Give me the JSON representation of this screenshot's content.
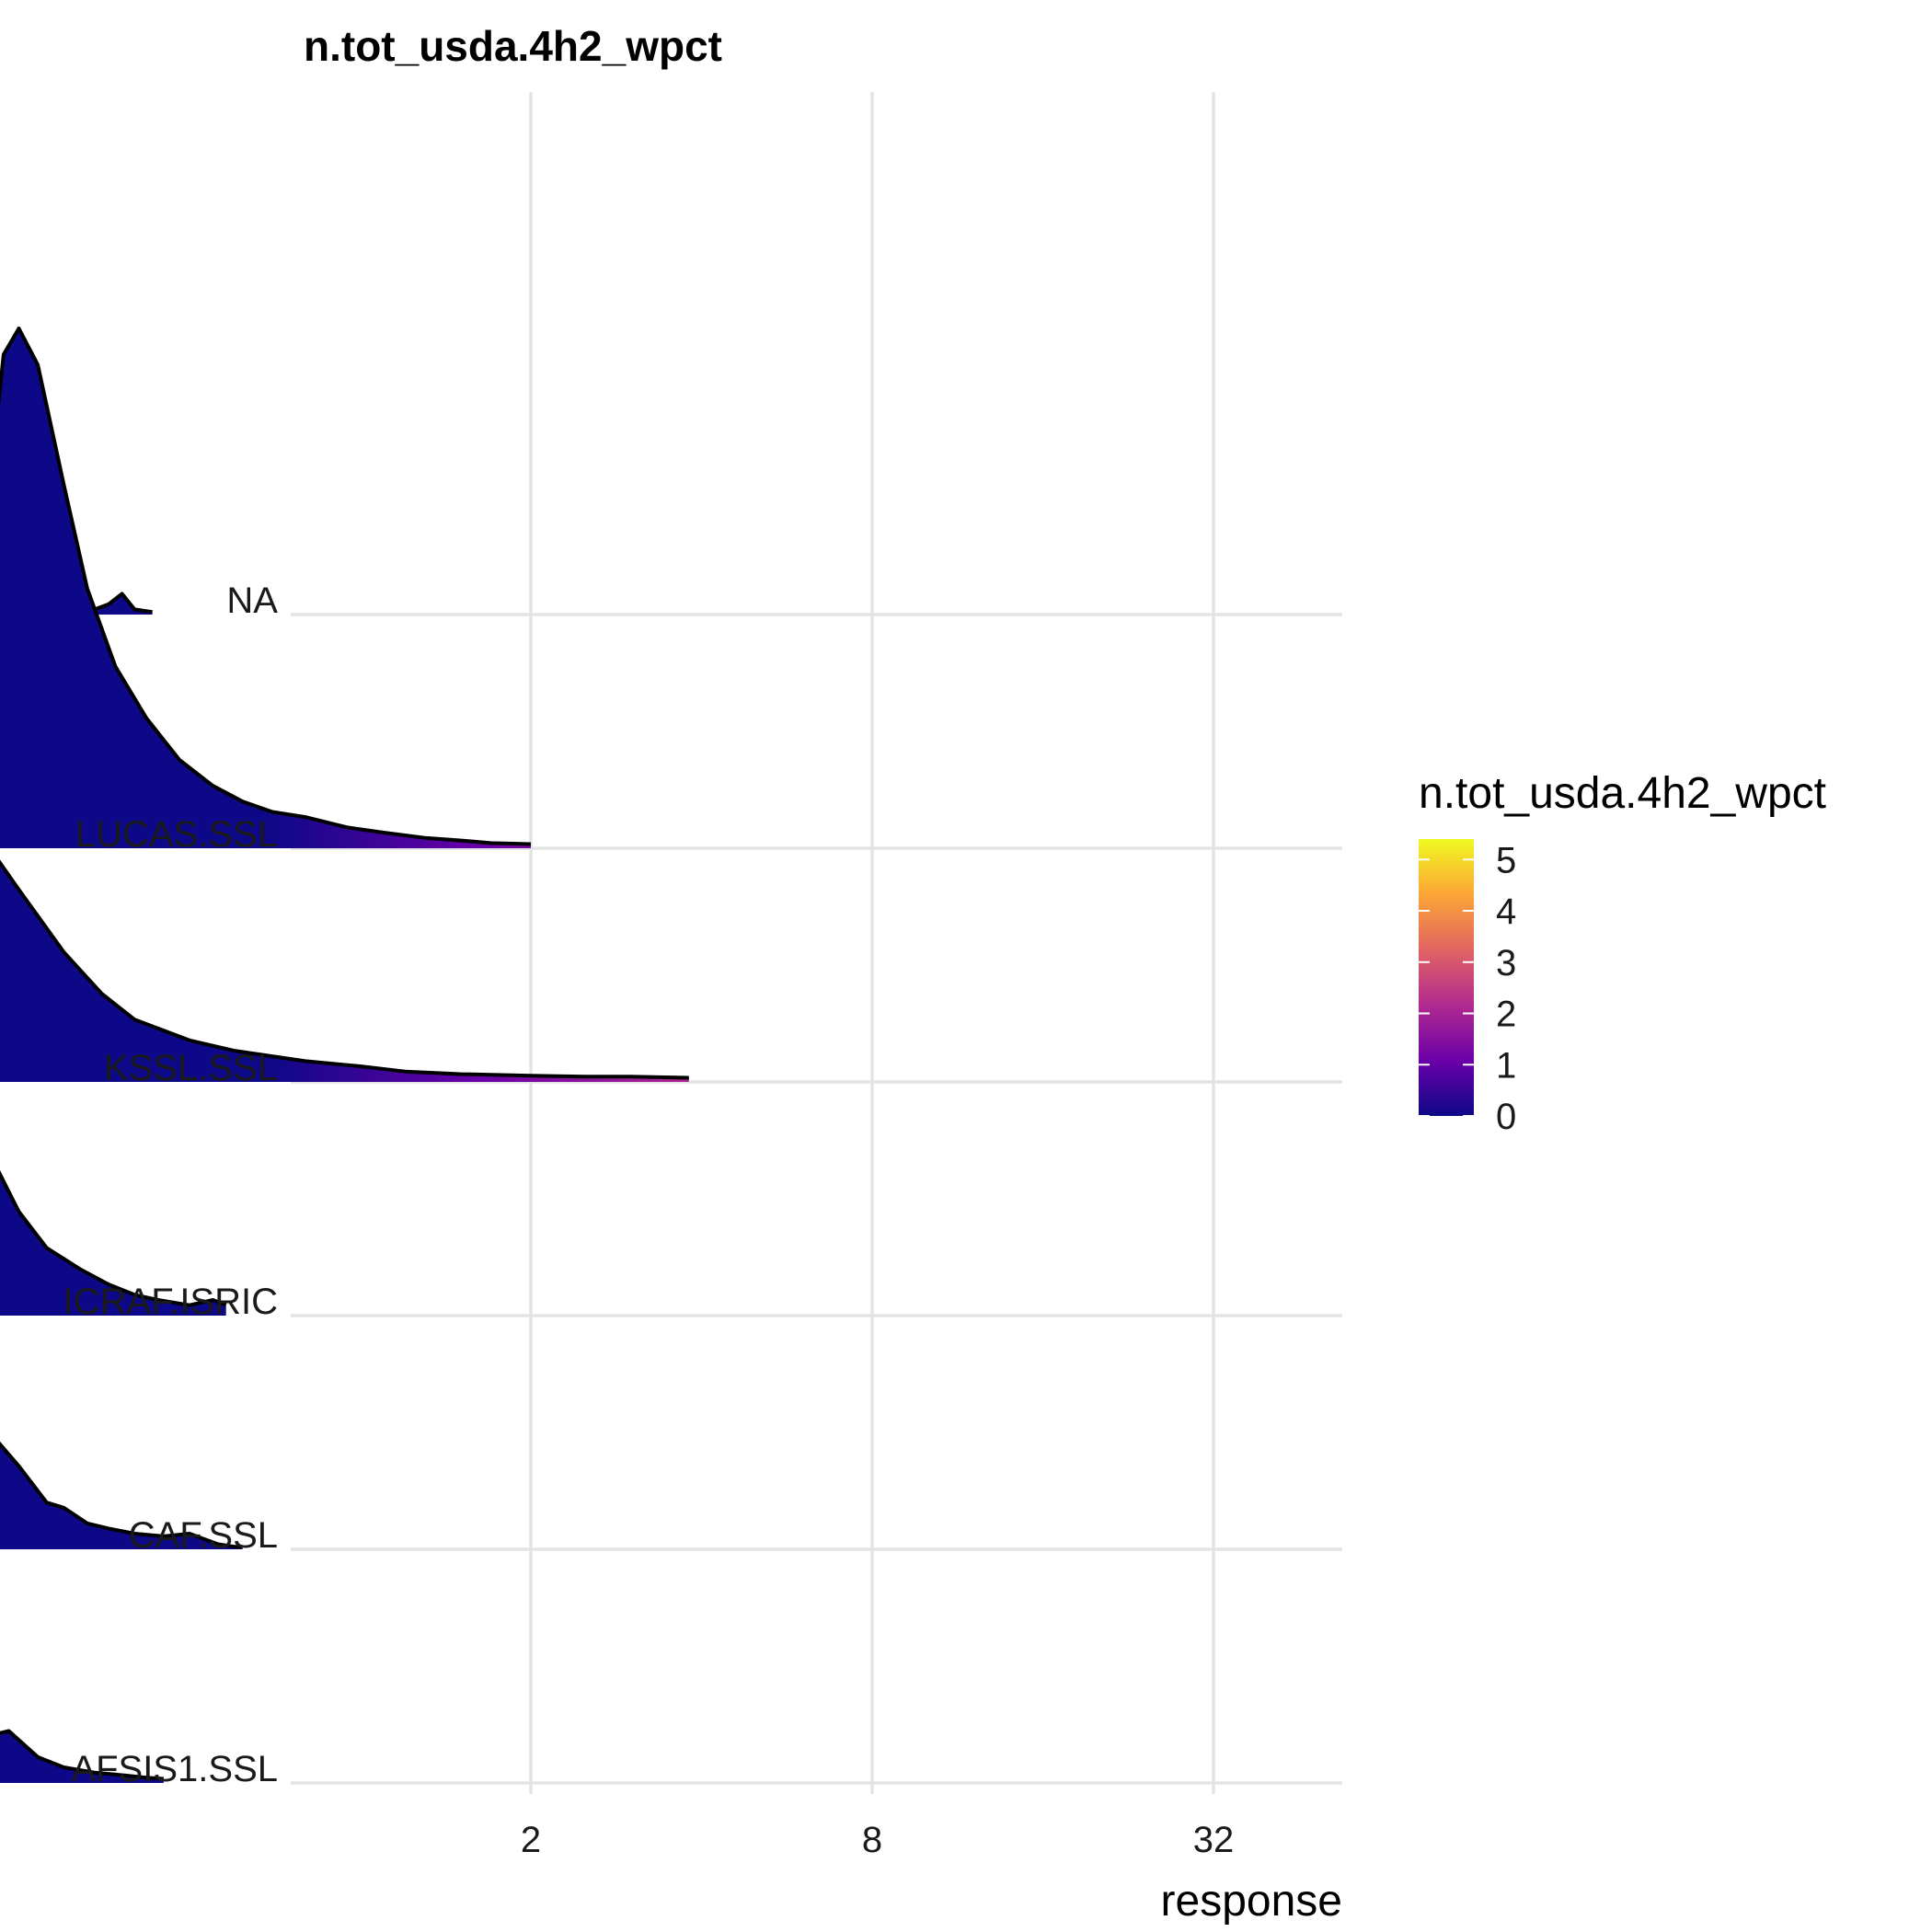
{
  "chart_data": {
    "type": "ridgeline",
    "title": "n.tot_usda.4h2_wpct",
    "xlabel": "response",
    "ylabel": "",
    "x_scale": "log2",
    "xlim": [
      0.07,
      64
    ],
    "x_ticks": [
      2,
      8,
      32
    ],
    "categories": [
      "AFSIS1.SSL",
      "CAF.SSL",
      "ICRAF.ISRIC",
      "KSSL.SSL",
      "LUCAS.SSL",
      "NA"
    ],
    "grid": true,
    "legend": {
      "title": "n.tot_usda.4h2_wpct",
      "position": "right",
      "scale": "plasma",
      "min": 0,
      "max": 5.4,
      "ticks": [
        0,
        1,
        2,
        3,
        4,
        5
      ],
      "colors": [
        "#0d0887",
        "#6a00a8",
        "#b12a90",
        "#e16462",
        "#fca636",
        "#f0f921"
      ]
    },
    "series": [
      {
        "name": "AFSIS1.SSL",
        "x": [
          0.1,
          0.105,
          0.11,
          0.118,
          0.125,
          0.135,
          0.15,
          0.17,
          0.19,
          0.21,
          0.22,
          0.24,
          0.27,
          0.3,
          0.34,
          0.38,
          0.42,
          0.45
        ],
        "density": [
          0.02,
          0.45,
          1.0,
          0.93,
          0.8,
          0.6,
          0.44,
          0.3,
          0.2,
          0.12,
          0.09,
          0.1,
          0.05,
          0.03,
          0.02,
          0.015,
          0.01,
          0.008
        ]
      },
      {
        "name": "CAF.SSL",
        "x": [
          0.1,
          0.105,
          0.11,
          0.115,
          0.12,
          0.13,
          0.14,
          0.16,
          0.18,
          0.2,
          0.22,
          0.25,
          0.28,
          0.3,
          0.33,
          0.36,
          0.4,
          0.45,
          0.5,
          0.56,
          0.6,
          0.62
        ],
        "density": [
          0.02,
          0.5,
          1.0,
          0.95,
          0.88,
          0.7,
          0.55,
          0.4,
          0.3,
          0.24,
          0.23,
          0.16,
          0.09,
          0.08,
          0.05,
          0.04,
          0.03,
          0.025,
          0.03,
          0.01,
          0.005,
          0.005
        ]
      },
      {
        "name": "ICRAF.ISRIC",
        "x": [
          0.1,
          0.105,
          0.11,
          0.118,
          0.125,
          0.13,
          0.14,
          0.15,
          0.16,
          0.18,
          0.2,
          0.22,
          0.25,
          0.28,
          0.32,
          0.36,
          0.4,
          0.44,
          0.5,
          0.55,
          0.58
        ],
        "density": [
          0.03,
          0.5,
          0.95,
          0.9,
          0.88,
          0.93,
          1.0,
          0.9,
          0.7,
          0.55,
          0.4,
          0.32,
          0.2,
          0.13,
          0.09,
          0.06,
          0.04,
          0.03,
          0.02,
          0.03,
          0.02
        ]
      },
      {
        "name": "KSSL.SSL",
        "x": [
          0.1,
          0.11,
          0.12,
          0.13,
          0.14,
          0.15,
          0.16,
          0.18,
          0.2,
          0.25,
          0.3,
          0.35,
          0.4,
          0.5,
          0.6,
          0.8,
          1.0,
          1.2,
          1.5,
          2.0,
          2.5,
          3.0,
          3.8
        ],
        "density": [
          0.02,
          0.3,
          0.75,
          1.0,
          0.97,
          0.85,
          0.72,
          0.6,
          0.52,
          0.37,
          0.25,
          0.17,
          0.12,
          0.08,
          0.06,
          0.04,
          0.03,
          0.02,
          0.015,
          0.012,
          0.01,
          0.01,
          0.008
        ]
      },
      {
        "name": "LUCAS.SSL",
        "x": [
          0.2,
          0.21,
          0.22,
          0.235,
          0.25,
          0.27,
          0.3,
          0.33,
          0.37,
          0.42,
          0.48,
          0.55,
          0.62,
          0.7,
          0.8,
          0.95,
          1.1,
          1.3,
          1.5,
          1.7,
          2.0
        ],
        "density": [
          0.02,
          0.25,
          0.65,
          0.95,
          1.0,
          0.93,
          0.7,
          0.5,
          0.35,
          0.25,
          0.17,
          0.12,
          0.09,
          0.07,
          0.06,
          0.04,
          0.03,
          0.02,
          0.015,
          0.01,
          0.008
        ]
      },
      {
        "name": "NA",
        "x": [
          0.1,
          0.11,
          0.12,
          0.13,
          0.14,
          0.15,
          0.16,
          0.17,
          0.18,
          0.19,
          0.2,
          0.22,
          0.24,
          0.26,
          0.28,
          0.3,
          0.32,
          0.34,
          0.36,
          0.38,
          0.4,
          0.43
        ],
        "density": [
          0.01,
          0.2,
          0.55,
          0.9,
          1.0,
          0.88,
          0.7,
          0.56,
          0.44,
          0.41,
          0.38,
          0.18,
          0.16,
          0.15,
          0.09,
          0.04,
          0.015,
          0.01,
          0.02,
          0.04,
          0.01,
          0.005
        ]
      }
    ]
  }
}
